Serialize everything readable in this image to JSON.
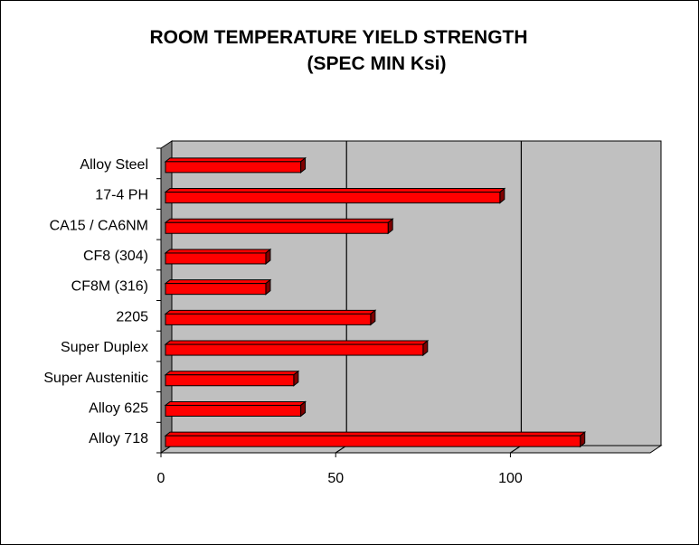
{
  "chart_data": {
    "type": "bar",
    "orientation": "horizontal",
    "title": "ROOM TEMPERATURE YIELD STRENGTH",
    "subtitle": "(SPEC MIN Ksi)",
    "xlabel": "",
    "ylabel": "",
    "categories": [
      "Alloy Steel",
      "17-4 PH",
      "CA15 / CA6NM",
      "CF8 (304)",
      "CF8M (316)",
      "2205",
      "Super Duplex",
      "Super Austenitic",
      "Alloy 625",
      "Alloy 718"
    ],
    "values": [
      40,
      97,
      65,
      30,
      30,
      60,
      75,
      38,
      40,
      120
    ],
    "xlim": [
      0,
      140
    ],
    "xticks": [
      0,
      50,
      100
    ],
    "xtick_labels": [
      "0",
      "50",
      "100"
    ],
    "grid": true,
    "legend": "none",
    "bar_color": "#ff0000",
    "plot_background": "#c0c0c0"
  }
}
